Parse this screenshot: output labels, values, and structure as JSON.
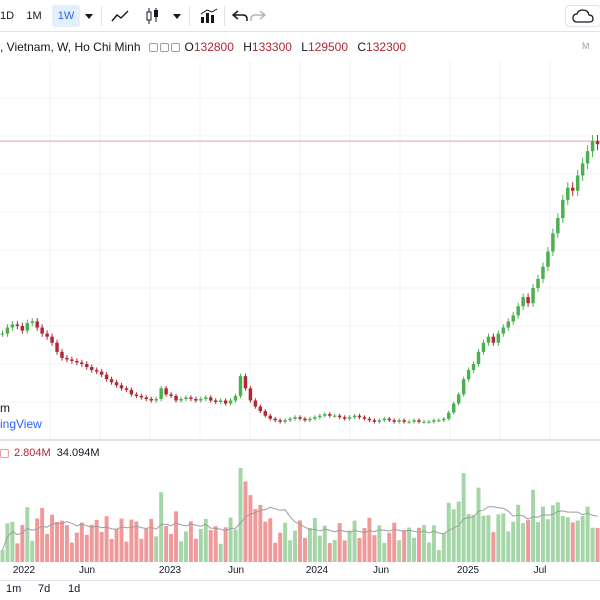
{
  "toolbar": {
    "intervals": [
      "1D",
      "1M",
      "1W"
    ],
    "active_interval": "1W",
    "chart_types": [
      "line-chart-icon",
      "candlestick-icon",
      "bar-chart-icon"
    ]
  },
  "legend": {
    "symbol": ", Vietnam, W, Ho Chi Minh",
    "open_label": "O",
    "open": "132800",
    "high_label": "H",
    "high": "133300",
    "low_label": "L",
    "low": "129500",
    "close_label": "C",
    "close": "132300",
    "corner_mark": "M"
  },
  "volume_legend": {
    "vol_current": "2.804M",
    "vol_ma": "34.094M"
  },
  "watermark": {
    "line1": "m",
    "line2": "ingView"
  },
  "x_axis_labels": [
    "2022",
    "Jun",
    "2023",
    "Jun",
    "2024",
    "Jun",
    "2025",
    "Jul"
  ],
  "bottom_bar": [
    "1m",
    "7d",
    "1d"
  ],
  "colors": {
    "up": "#4caf50",
    "down": "#b22833",
    "up_vol": "#a5d6a7",
    "down_vol": "#ef9a9a",
    "accent": "#2962ff",
    "price_line": "#ef9a9a"
  },
  "chart_data": {
    "type": "candlestick",
    "x_ticks": [
      "2022",
      "Jun",
      "2023",
      "Jun",
      "2024",
      "Jun",
      "2025",
      "Jul"
    ],
    "reference_price_line": 133300,
    "price_series_close": [
      70000,
      72000,
      73000,
      72500,
      71000,
      73500,
      74000,
      72000,
      70000,
      69000,
      67000,
      64000,
      62000,
      61500,
      61000,
      60500,
      60000,
      59000,
      58000,
      57500,
      56500,
      55000,
      54000,
      53000,
      52000,
      51500,
      50000,
      49500,
      49000,
      48500,
      48000,
      48500,
      52000,
      50000,
      49500,
      48000,
      48500,
      49000,
      48500,
      48000,
      48500,
      49000,
      48000,
      47500,
      48000,
      47000,
      48000,
      49500,
      56000,
      52000,
      48000,
      46000,
      44500,
      43000,
      42000,
      41500,
      41000,
      41500,
      42000,
      42500,
      42000,
      41500,
      42000,
      42500,
      43000,
      43500,
      43000,
      43000,
      42500,
      42000,
      42500,
      43000,
      42500,
      42000,
      41500,
      41000,
      41500,
      42000,
      41500,
      41000,
      41500,
      41000,
      41000,
      41500,
      41000,
      41000,
      41000,
      41500,
      41500,
      42000,
      44000,
      47000,
      50000,
      55000,
      58000,
      60000,
      64000,
      67000,
      69000,
      67000,
      70000,
      72000,
      74000,
      76000,
      79000,
      82000,
      80000,
      85000,
      88000,
      92000,
      97000,
      103000,
      108000,
      114000,
      118000,
      117000,
      122000,
      126000,
      130000,
      133300,
      132300
    ],
    "volume_ma": "34.094M",
    "last_volume": "2.804M"
  }
}
